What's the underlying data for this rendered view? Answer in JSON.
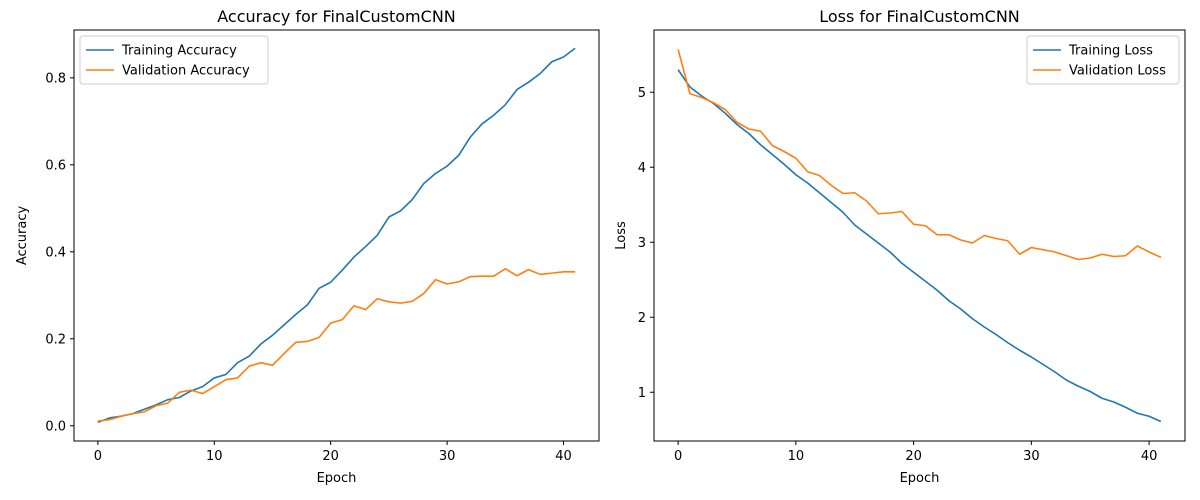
{
  "chart_data": [
    {
      "type": "line",
      "title": "Accuracy for FinalCustomCNN",
      "xlabel": "Epoch",
      "ylabel": "Accuracy",
      "xlim": [
        -2.05,
        43.05
      ],
      "ylim": [
        -0.035,
        0.91
      ],
      "xticks": [
        0,
        10,
        20,
        30,
        40
      ],
      "yticks": [
        0.0,
        0.2,
        0.4,
        0.6,
        0.8
      ],
      "ytick_labels": [
        "0.0",
        "0.2",
        "0.4",
        "0.6",
        "0.8"
      ],
      "legend_position": "upper left",
      "x": [
        0,
        1,
        2,
        3,
        4,
        5,
        6,
        7,
        8,
        9,
        10,
        11,
        12,
        13,
        14,
        15,
        16,
        17,
        18,
        19,
        20,
        21,
        22,
        23,
        24,
        25,
        26,
        27,
        28,
        29,
        30,
        31,
        32,
        33,
        34,
        35,
        36,
        37,
        38,
        39,
        40,
        41
      ],
      "series": [
        {
          "name": "Training Accuracy",
          "color": "#1f77b4",
          "values": [
            0.008,
            0.018,
            0.022,
            0.028,
            0.038,
            0.048,
            0.06,
            0.065,
            0.08,
            0.09,
            0.11,
            0.118,
            0.145,
            0.16,
            0.188,
            0.208,
            0.232,
            0.256,
            0.278,
            0.316,
            0.33,
            0.358,
            0.388,
            0.412,
            0.438,
            0.48,
            0.494,
            0.52,
            0.557,
            0.58,
            0.597,
            0.622,
            0.664,
            0.694,
            0.714,
            0.738,
            0.773,
            0.79,
            0.81,
            0.837,
            0.848,
            0.868
          ]
        },
        {
          "name": "Validation Accuracy",
          "color": "#ff7f0e",
          "values": [
            0.011,
            0.014,
            0.022,
            0.028,
            0.032,
            0.046,
            0.052,
            0.077,
            0.082,
            0.074,
            0.09,
            0.106,
            0.11,
            0.137,
            0.145,
            0.139,
            0.166,
            0.192,
            0.194,
            0.203,
            0.236,
            0.244,
            0.276,
            0.267,
            0.292,
            0.285,
            0.282,
            0.286,
            0.304,
            0.336,
            0.326,
            0.331,
            0.343,
            0.344,
            0.344,
            0.361,
            0.345,
            0.359,
            0.348,
            0.351,
            0.354,
            0.354
          ]
        }
      ]
    },
    {
      "type": "line",
      "title": "Loss for FinalCustomCNN",
      "xlabel": "Epoch",
      "ylabel": "Loss",
      "xlim": [
        -2.05,
        43.05
      ],
      "ylim": [
        0.35,
        5.83
      ],
      "xticks": [
        0,
        10,
        20,
        30,
        40
      ],
      "yticks": [
        1,
        2,
        3,
        4,
        5
      ],
      "ytick_labels": [
        "1",
        "2",
        "3",
        "4",
        "5"
      ],
      "legend_position": "upper right",
      "x": [
        0,
        1,
        2,
        3,
        4,
        5,
        6,
        7,
        8,
        9,
        10,
        11,
        12,
        13,
        14,
        15,
        16,
        17,
        18,
        19,
        20,
        21,
        22,
        23,
        24,
        25,
        26,
        27,
        28,
        29,
        30,
        31,
        32,
        33,
        34,
        35,
        36,
        37,
        38,
        39,
        40,
        41
      ],
      "series": [
        {
          "name": "Training Loss",
          "color": "#1f77b4",
          "values": [
            5.3,
            5.07,
            4.95,
            4.85,
            4.72,
            4.57,
            4.45,
            4.3,
            4.17,
            4.04,
            3.9,
            3.79,
            3.66,
            3.53,
            3.4,
            3.23,
            3.11,
            2.99,
            2.87,
            2.72,
            2.6,
            2.48,
            2.36,
            2.22,
            2.11,
            1.98,
            1.87,
            1.77,
            1.66,
            1.56,
            1.47,
            1.37,
            1.27,
            1.16,
            1.08,
            1.01,
            0.92,
            0.87,
            0.8,
            0.72,
            0.68,
            0.61
          ]
        },
        {
          "name": "Validation Loss",
          "color": "#ff7f0e",
          "values": [
            5.57,
            4.98,
            4.93,
            4.86,
            4.77,
            4.6,
            4.51,
            4.48,
            4.29,
            4.21,
            4.12,
            3.94,
            3.89,
            3.76,
            3.65,
            3.66,
            3.55,
            3.38,
            3.39,
            3.41,
            3.24,
            3.22,
            3.1,
            3.1,
            3.03,
            2.99,
            3.09,
            3.05,
            3.02,
            2.84,
            2.93,
            2.9,
            2.87,
            2.82,
            2.77,
            2.79,
            2.84,
            2.81,
            2.82,
            2.95,
            2.87,
            2.8
          ]
        }
      ]
    }
  ]
}
